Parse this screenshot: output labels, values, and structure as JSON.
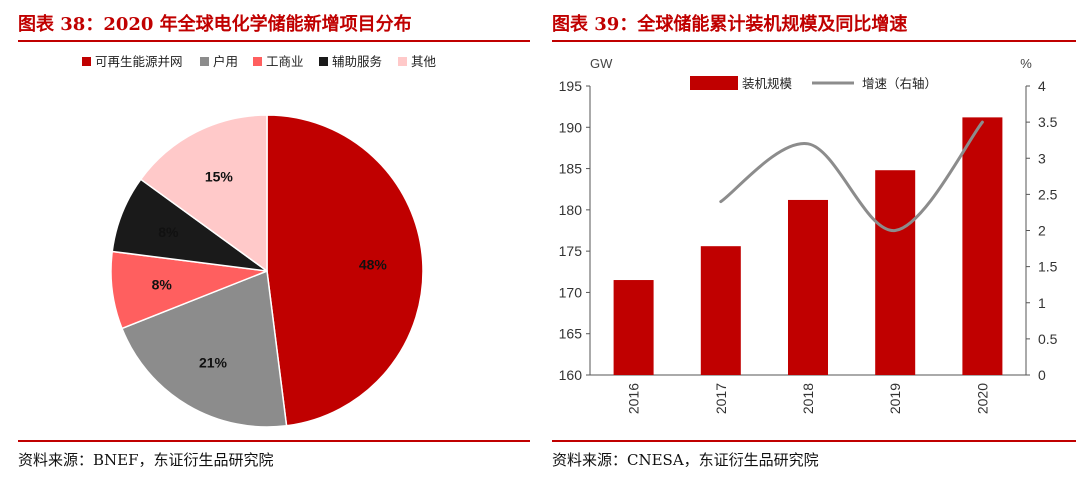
{
  "left": {
    "title": "图表 38：2020 年全球电化学储能新增项目分布",
    "source": "资料来源：BNEF，东证衍生品研究院"
  },
  "right": {
    "title": "图表 39：全球储能累计装机规模及同比增速",
    "source": "资料来源：CNESA，东证衍生品研究院"
  },
  "chart_data": [
    {
      "type": "pie",
      "title": "2020 年全球电化学储能新增项目分布",
      "legend_position": "top",
      "slices": [
        {
          "name": "可再生能源并网",
          "value": 48,
          "label": "48%",
          "color": "#c00000"
        },
        {
          "name": "户用",
          "value": 21,
          "label": "21%",
          "color": "#8c8c8c"
        },
        {
          "name": "工商业",
          "value": 8,
          "label": "8%",
          "color": "#ff5f5f"
        },
        {
          "name": "辅助服务",
          "value": 8,
          "label": "8%",
          "color": "#1a1a1a"
        },
        {
          "name": "其他",
          "value": 15,
          "label": "15%",
          "color": "#ffc9c9"
        }
      ]
    },
    {
      "type": "bar",
      "title": "全球储能累计装机规模及同比增速",
      "categories": [
        "2016",
        "2017",
        "2018",
        "2019",
        "2020"
      ],
      "ylabel": "GW",
      "y2label": "%",
      "ylim": [
        160,
        195
      ],
      "yticks": [
        "160",
        "165",
        "170",
        "175",
        "180",
        "185",
        "190",
        "195"
      ],
      "y2lim": [
        0,
        4
      ],
      "y2ticks": [
        "0",
        "0.5",
        "1",
        "1.5",
        "2",
        "2.5",
        "3",
        "3.5",
        "4"
      ],
      "legend_position": "top",
      "grid": false,
      "series": [
        {
          "name": "装机规模",
          "kind": "bar",
          "axis": "left",
          "color": "#c00000",
          "values": [
            171.5,
            175.6,
            181.2,
            184.8,
            191.2
          ]
        },
        {
          "name": "增速（右轴）",
          "kind": "line",
          "axis": "right",
          "color": "#8c8c8c",
          "values": [
            null,
            2.4,
            3.2,
            2.0,
            3.5
          ]
        }
      ]
    }
  ]
}
